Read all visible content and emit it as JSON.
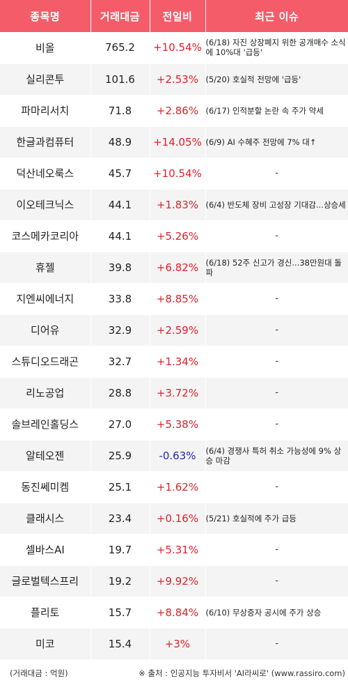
{
  "header": {
    "col_name": "종목명",
    "col_amount": "거래대금",
    "col_change": "전일비",
    "col_issue": "최근 이슈"
  },
  "rows": [
    {
      "name": "비올",
      "amount": "765.2",
      "change": "+10.54%",
      "direction": "up",
      "issue": "(6/18) 자진 상장폐지 위한 공개매수 소식에 10%대 '급등'"
    },
    {
      "name": "실리콘투",
      "amount": "101.6",
      "change": "+2.53%",
      "direction": "up",
      "issue": "(5/20) 호실적 전망에 '급등'"
    },
    {
      "name": "파마리서치",
      "amount": "71.8",
      "change": "+2.86%",
      "direction": "up",
      "issue": "(6/17) 인적분할 논란 속 주가 약세"
    },
    {
      "name": "한글과컴퓨터",
      "amount": "48.9",
      "change": "+14.05%",
      "direction": "up",
      "issue": "(6/9) AI 수혜주 전망에 7% 대↑"
    },
    {
      "name": "덕산네오룩스",
      "amount": "45.7",
      "change": "+10.54%",
      "direction": "up",
      "issue": "-"
    },
    {
      "name": "이오테크닉스",
      "amount": "44.1",
      "change": "+1.83%",
      "direction": "up",
      "issue": "(6/4) 반도체 장비 고성장 기대감...상승세"
    },
    {
      "name": "코스메카코리아",
      "amount": "44.1",
      "change": "+5.26%",
      "direction": "up",
      "issue": "-"
    },
    {
      "name": "휴젤",
      "amount": "39.8",
      "change": "+6.82%",
      "direction": "up",
      "issue": "(6/18) 52주 신고가 경신...38만원대 돌파"
    },
    {
      "name": "지엔씨에너지",
      "amount": "33.8",
      "change": "+8.85%",
      "direction": "up",
      "issue": "-"
    },
    {
      "name": "디어유",
      "amount": "32.9",
      "change": "+2.59%",
      "direction": "up",
      "issue": "-"
    },
    {
      "name": "스튜디오드래곤",
      "amount": "32.7",
      "change": "+1.34%",
      "direction": "up",
      "issue": "-"
    },
    {
      "name": "리노공업",
      "amount": "28.8",
      "change": "+3.72%",
      "direction": "up",
      "issue": "-"
    },
    {
      "name": "솔브레인홀딩스",
      "amount": "27.0",
      "change": "+5.38%",
      "direction": "up",
      "issue": "-"
    },
    {
      "name": "알테오젠",
      "amount": "25.9",
      "change": "-0.63%",
      "direction": "down",
      "issue": "(6/4) 경쟁사 특허 취소 가능성에 9% 상승 마감"
    },
    {
      "name": "동진쎄미켐",
      "amount": "25.1",
      "change": "+1.62%",
      "direction": "up",
      "issue": "-"
    },
    {
      "name": "클래시스",
      "amount": "23.4",
      "change": "+0.16%",
      "direction": "up",
      "issue": "(5/21) 호실적에 주가 급등"
    },
    {
      "name": "셀바스AI",
      "amount": "19.7",
      "change": "+5.31%",
      "direction": "up",
      "issue": "-"
    },
    {
      "name": "글로벌텍스프리",
      "amount": "19.2",
      "change": "+9.92%",
      "direction": "up",
      "issue": "-"
    },
    {
      "name": "플리토",
      "amount": "15.7",
      "change": "+8.84%",
      "direction": "up",
      "issue": "(6/10) 무상증자 공시에 주가 상승"
    },
    {
      "name": "미코",
      "amount": "15.4",
      "change": "+3%",
      "direction": "up",
      "issue": "-"
    }
  ],
  "footer": {
    "unit_note": "(거래대금 : 억원)",
    "source_note": "※ 출처 : 인공지능 투자비서 'AI라씨로' (www.rassiro.com)"
  },
  "colors": {
    "header_bg": "#f45c6a",
    "up": "#e0202a",
    "down": "#2028b8",
    "stripe": "#f4f4f4"
  }
}
